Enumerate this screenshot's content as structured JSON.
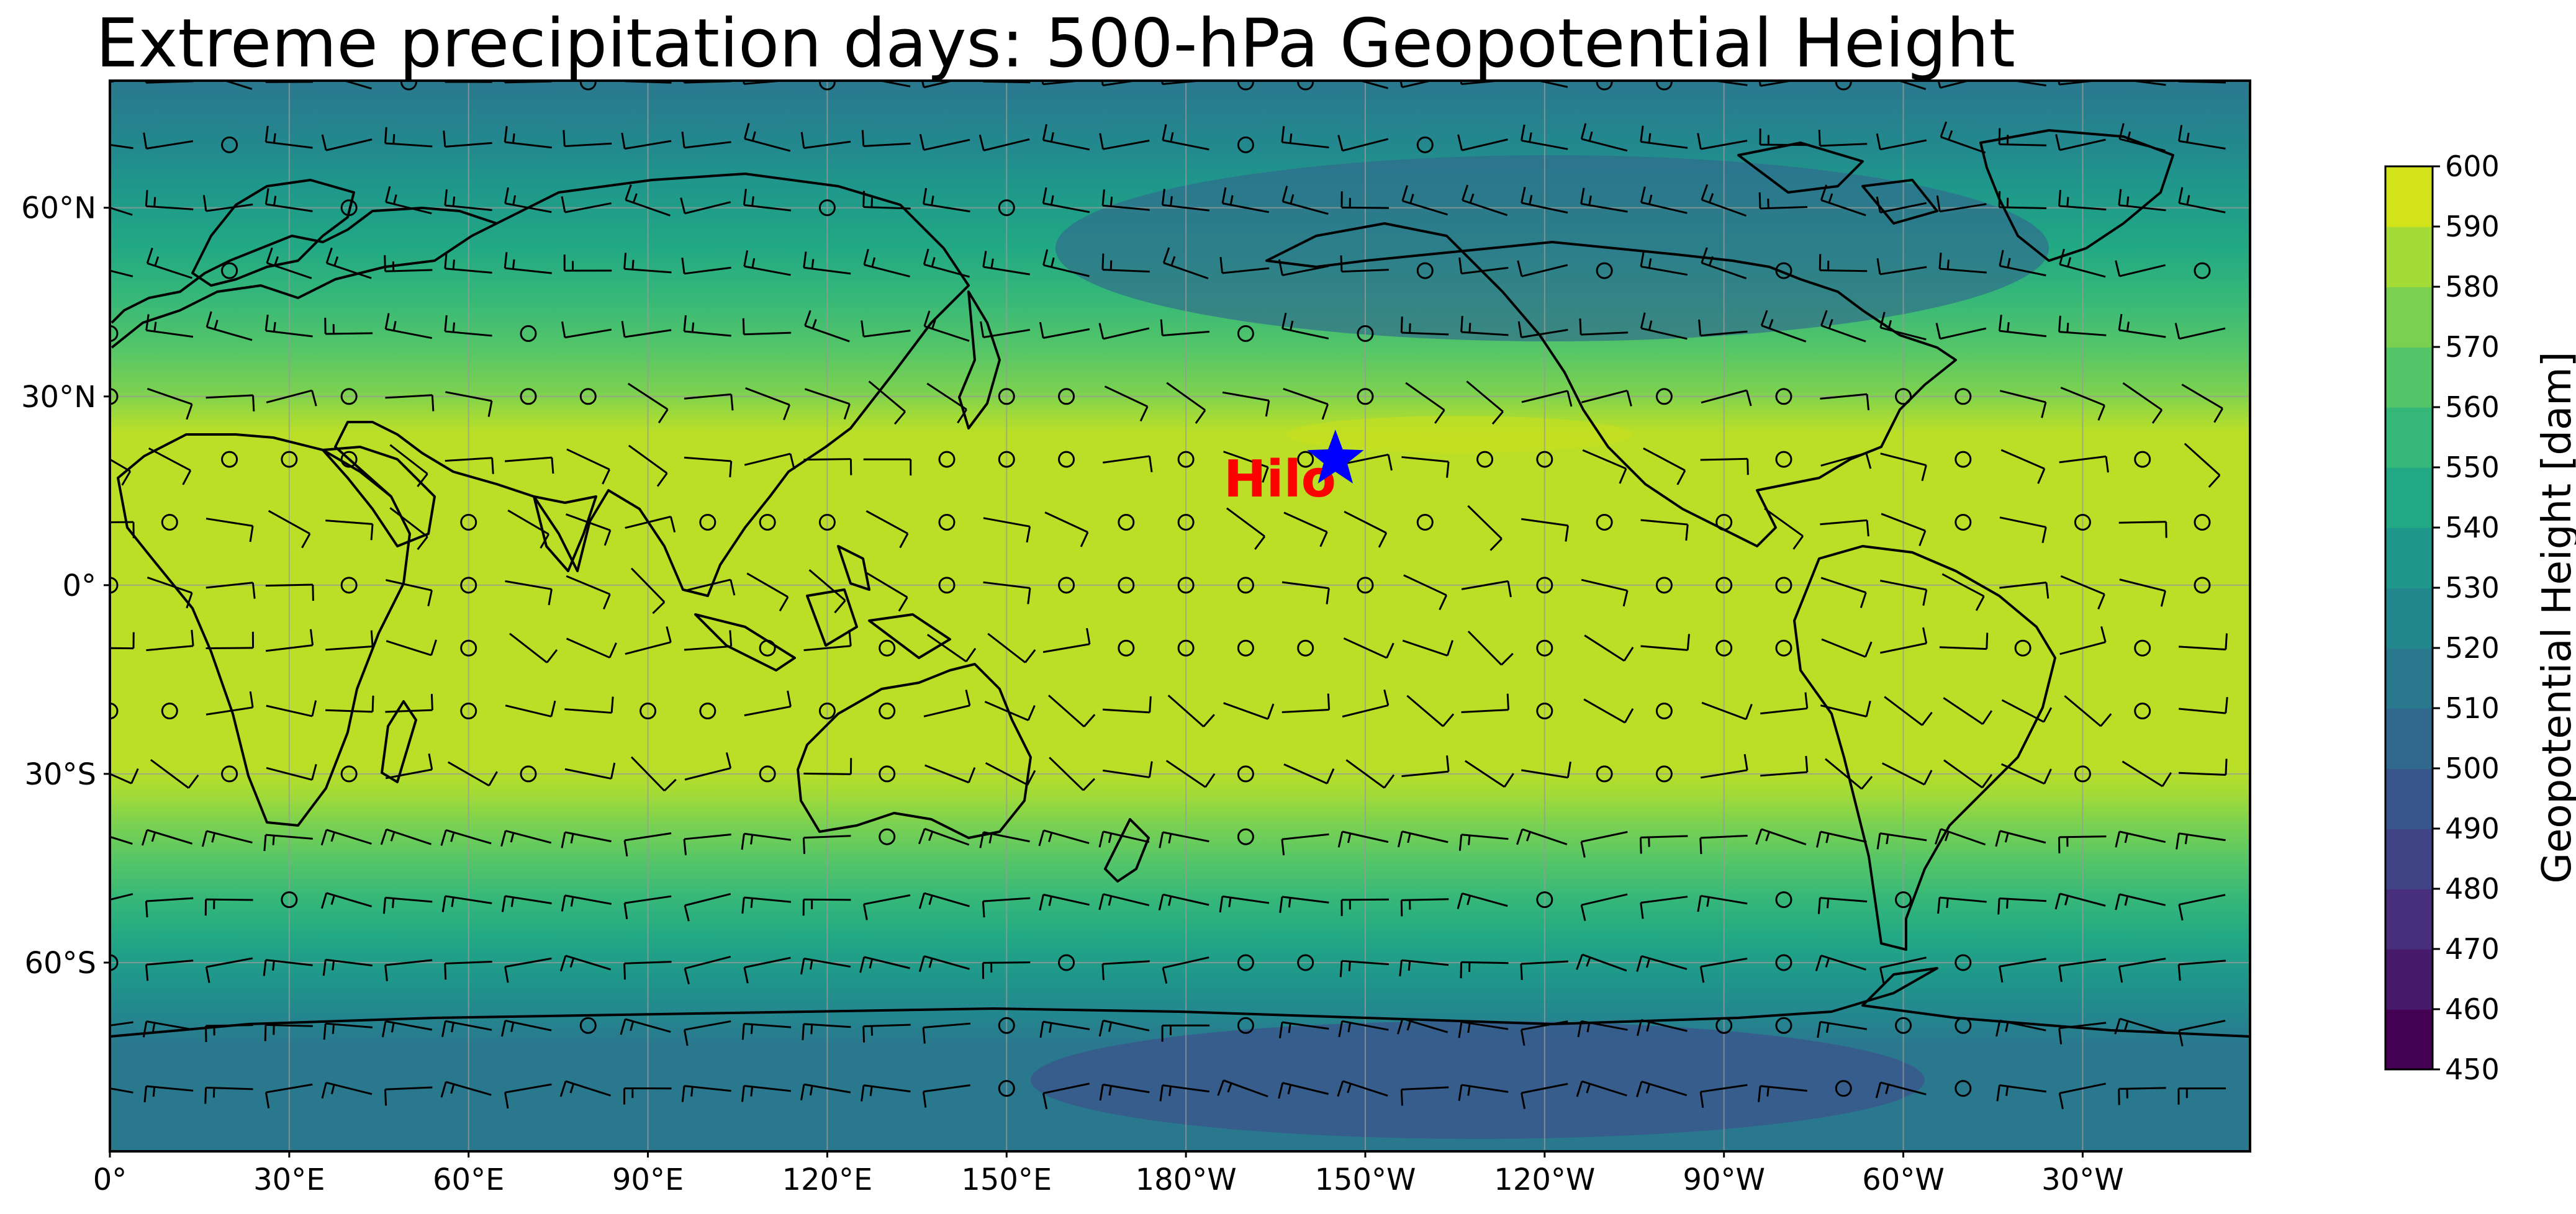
{
  "title": "Extreme precipitation days: 500-hPa Geopotential Height",
  "map": {
    "lon_labels": [
      "0°",
      "30°E",
      "60°E",
      "90°E",
      "120°E",
      "150°E",
      "180°W",
      "150°W",
      "120°W",
      "90°W",
      "60°W",
      "30°W"
    ],
    "lat_labels": [
      "60°N",
      "30°N",
      "0°",
      "30°S",
      "60°S"
    ],
    "marker": {
      "label": "Hilo",
      "lon": 205,
      "lat": 20,
      "label_color": "#ff0000",
      "marker_color": "#0000ff",
      "marker_icon": "star-icon"
    }
  },
  "colorbar": {
    "label": "Geopotential Height [dam]",
    "levels": [
      450,
      460,
      470,
      480,
      490,
      500,
      510,
      520,
      530,
      540,
      550,
      560,
      570,
      580,
      590,
      600
    ],
    "tick_labels": [
      "450",
      "460",
      "470",
      "480",
      "490",
      "500",
      "510",
      "520",
      "530",
      "540",
      "550",
      "560",
      "570",
      "580",
      "590",
      "600"
    ],
    "colors": [
      "#440154",
      "#481a6c",
      "#472f7d",
      "#414487",
      "#39568c",
      "#31688e",
      "#2a788e",
      "#23888e",
      "#1f988b",
      "#22a884",
      "#35b779",
      "#54c568",
      "#7ad151",
      "#a5db36",
      "#d2e21b",
      "#fde725"
    ]
  }
}
